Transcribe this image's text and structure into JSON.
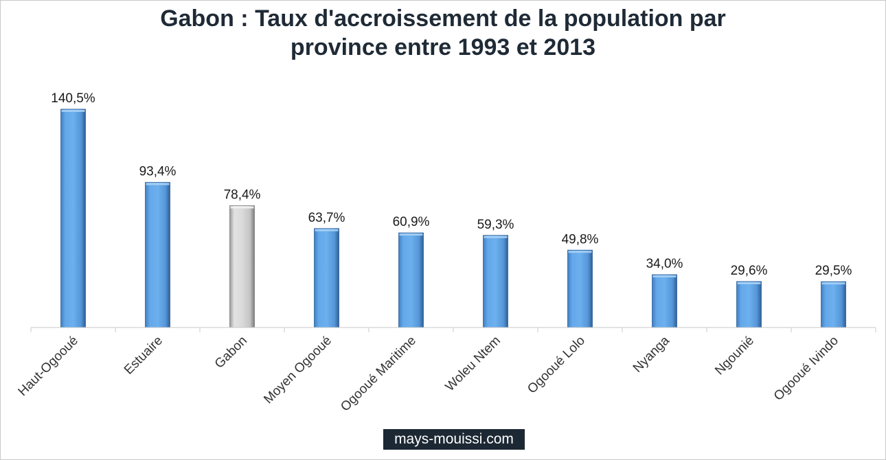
{
  "title_lines": [
    "Gabon : Taux d'accroissement de la population par",
    "province entre 1993 et 2013"
  ],
  "watermark": "mays-mouissi.com",
  "colors": {
    "bar": "#5b9ee0",
    "highlight_bar": "#d4d4d4",
    "axis": "#c8c8c8"
  },
  "chart_data": {
    "type": "bar",
    "title": "Gabon : Taux d'accroissement de la population par province entre 1993 et 2013",
    "xlabel": "",
    "ylabel": "",
    "ylim": [
      0,
      150
    ],
    "grid": false,
    "legend": "none",
    "categories": [
      "Haut-Ogooué",
      "Estuaire",
      "Gabon",
      "Moyen Ogooué",
      "Ogooué Maritime",
      "Woleu Ntem",
      "Ogooué Lolo",
      "Nyanga",
      "Ngounié",
      "Ogooué Ivindo"
    ],
    "values": [
      140.5,
      93.4,
      78.4,
      63.7,
      60.9,
      59.3,
      49.8,
      34.0,
      29.6,
      29.5
    ],
    "value_labels": [
      "140,5%",
      "93,4%",
      "78,4%",
      "63,7%",
      "60,9%",
      "59,3%",
      "49,8%",
      "34,0%",
      "29,6%",
      "29,5%"
    ],
    "highlight_category": "Gabon"
  }
}
